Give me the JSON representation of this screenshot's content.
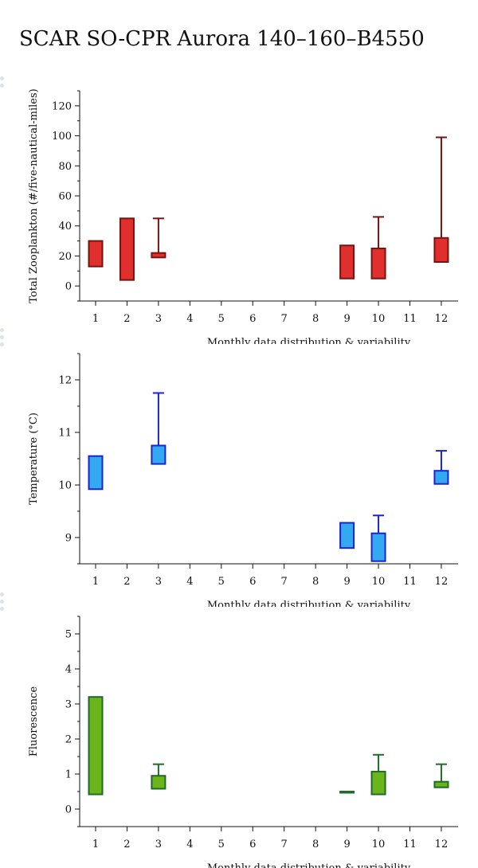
{
  "page_title": "SCAR SO-CPR Aurora 140–160–B4550",
  "chart_data": [
    {
      "type": "box",
      "ylabel": "Total Zooplankton (#/five-nautical-miles)",
      "xlabel": "Monthly data distribution & variability",
      "categories": [
        "1",
        "2",
        "3",
        "4",
        "5",
        "6",
        "7",
        "8",
        "9",
        "10",
        "11",
        "12"
      ],
      "ylim": [
        -10,
        130
      ],
      "yticks": [
        0,
        20,
        40,
        60,
        80,
        100,
        120
      ],
      "color_fill": "#e0302e",
      "color_stroke": "#7a1210",
      "boxes": [
        {
          "month": 1,
          "low": 13,
          "high": 30,
          "whisker": null
        },
        {
          "month": 2,
          "low": 4,
          "high": 45,
          "whisker": null
        },
        {
          "month": 3,
          "low": 19,
          "high": 22,
          "whisker": 45
        },
        {
          "month": 9,
          "low": 5,
          "high": 27,
          "whisker": null
        },
        {
          "month": 10,
          "low": 5,
          "high": 25,
          "whisker": 46
        },
        {
          "month": 12,
          "low": 16,
          "high": 32,
          "whisker": 99
        }
      ]
    },
    {
      "type": "box",
      "ylabel": "Temperature (°C)",
      "xlabel": "Monthly data distribution & variability",
      "categories": [
        "1",
        "2",
        "3",
        "4",
        "5",
        "6",
        "7",
        "8",
        "9",
        "10",
        "11",
        "12"
      ],
      "ylim": [
        8.5,
        12.5
      ],
      "yticks": [
        9,
        10,
        11,
        12
      ],
      "color_fill": "#33a9f2",
      "color_stroke": "#1d24c9",
      "boxes": [
        {
          "month": 1,
          "low": 9.92,
          "high": 10.55,
          "whisker": null
        },
        {
          "month": 3,
          "low": 10.4,
          "high": 10.75,
          "whisker": 11.75
        },
        {
          "month": 9,
          "low": 8.8,
          "high": 9.28,
          "whisker": null
        },
        {
          "month": 10,
          "low": 8.55,
          "high": 9.08,
          "whisker": 9.42
        },
        {
          "month": 12,
          "low": 10.02,
          "high": 10.27,
          "whisker": 10.65
        }
      ]
    },
    {
      "type": "box",
      "ylabel": "Fluorescence",
      "xlabel": "Monthly data distribution & variability",
      "categories": [
        "1",
        "2",
        "3",
        "4",
        "5",
        "6",
        "7",
        "8",
        "9",
        "10",
        "11",
        "12"
      ],
      "ylim": [
        -0.5,
        5.5
      ],
      "yticks": [
        0,
        1,
        2,
        3,
        4,
        5
      ],
      "color_fill": "#6ab51c",
      "color_stroke": "#1f6b27",
      "boxes": [
        {
          "month": 1,
          "low": 0.42,
          "high": 3.2,
          "whisker": null
        },
        {
          "month": 3,
          "low": 0.58,
          "high": 0.95,
          "whisker": 1.28
        },
        {
          "month": 9,
          "low": 0.47,
          "high": 0.5,
          "whisker": null
        },
        {
          "month": 10,
          "low": 0.42,
          "high": 1.07,
          "whisker": 1.55
        },
        {
          "month": 12,
          "low": 0.62,
          "high": 0.78,
          "whisker": 1.28
        }
      ]
    }
  ]
}
